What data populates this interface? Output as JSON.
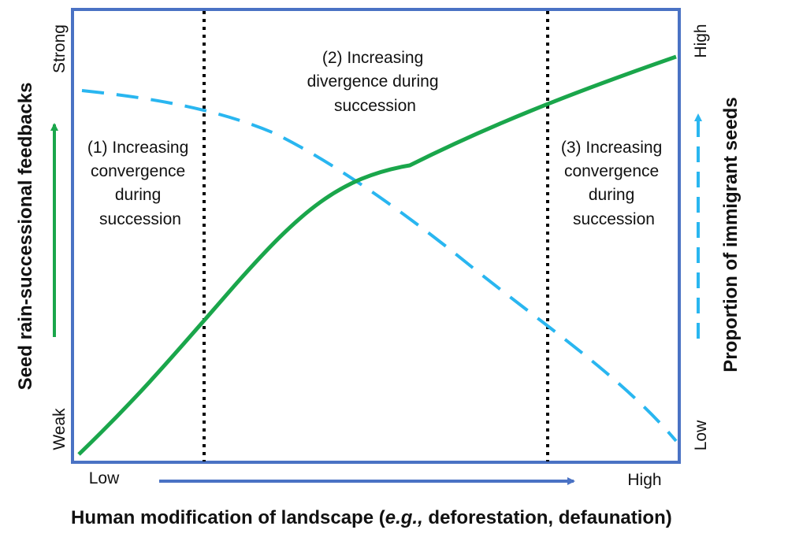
{
  "x_axis": {
    "title_main": "Human modification of landscape (",
    "title_eg": "e.g.,",
    "title_rest": " deforestation, defaunation)",
    "low_label": "Low",
    "high_label": "High"
  },
  "left_axis": {
    "title": "Seed rain-successional feedbacks",
    "low_label": "Weak",
    "high_label": "Strong"
  },
  "right_axis": {
    "title": "Proportion of immigrant seeds",
    "low_label": "Low",
    "high_label": "High"
  },
  "regions": [
    {
      "lines": [
        "(1) Increasing",
        "convergence",
        "during",
        "succession"
      ]
    },
    {
      "lines": [
        "(2) Increasing",
        "divergence during",
        "succession"
      ]
    },
    {
      "lines": [
        "(3) Increasing",
        "convergence",
        "during",
        "succession"
      ]
    }
  ],
  "colors": {
    "frame": "#4a72c4",
    "feedback_curve": "#1aa64b",
    "immigrant_curve": "#29b6f0",
    "divider": "#000000",
    "x_arrow": "#4a72c4"
  }
}
